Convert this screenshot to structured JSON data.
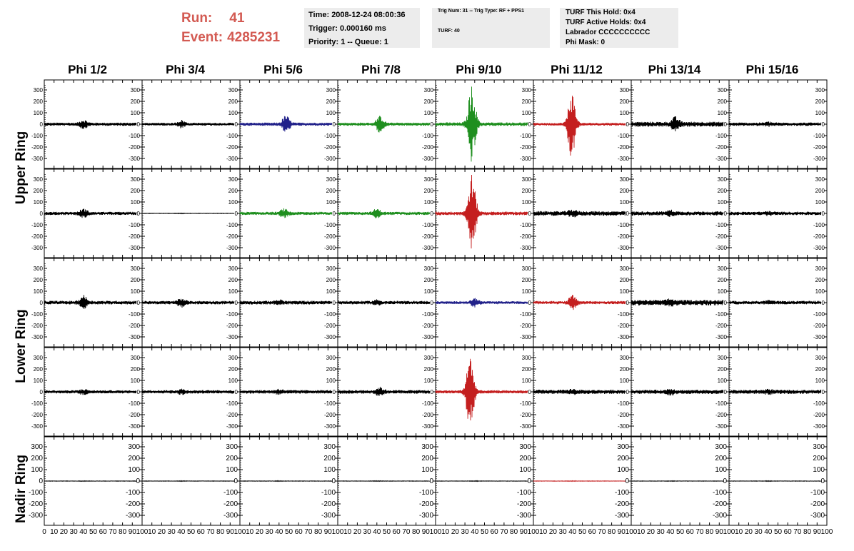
{
  "header": {
    "run_label": "Run:",
    "run_value": "41",
    "event_label": "Event:",
    "event_value": "4285231",
    "time_box": [
      "Time: 2008-12-24 08:00:36",
      "Trigger: 0.000160 ms",
      "Priority: 1 -- Queue: 1"
    ],
    "trig_box": {
      "line1": "Trig Num: 31 -- Trig Type: RF + PPS1",
      "line2": "TURF: 40"
    },
    "turf_box": [
      "TURF This Hold: 0x4",
      "TURF Active Holds: 0x4",
      "Labrador CCCCCCCCCC",
      "Phi Mask: 0"
    ]
  },
  "columns": [
    "Phi 1/2",
    "Phi 3/4",
    "Phi 5/6",
    "Phi 7/8",
    "Phi 9/10",
    "Phi 11/12",
    "Phi 13/14",
    "Phi 15/16"
  ],
  "rings": [
    {
      "label": "Upper Ring",
      "rows": [
        0,
        1
      ]
    },
    {
      "label": "Lower Ring",
      "rows": [
        2,
        3
      ]
    },
    {
      "label": "Nadir Ring",
      "rows": [
        4
      ]
    }
  ],
  "chart_data": {
    "type": "line",
    "xlim": [
      0,
      100
    ],
    "ylim": [
      -350,
      350
    ],
    "y_ticks": [
      -300,
      -200,
      -100,
      0,
      100,
      200,
      300
    ],
    "y_tick_labels": [
      "-300",
      "-200",
      "-100",
      "0",
      "100",
      "200",
      "300"
    ],
    "x_ticks": [
      0,
      10,
      20,
      30,
      40,
      50,
      60,
      70,
      80,
      90,
      100
    ],
    "x_tick_labels": [
      "0",
      "10",
      "20",
      "30",
      "40",
      "50",
      "60",
      "70",
      "80",
      "90",
      "100"
    ],
    "colors": {
      "black": "#000000",
      "blue": "#22228a",
      "green": "#1f8f1f",
      "red": "#c41f1f"
    },
    "panels": [
      [
        {
          "color": "black",
          "noise": 14,
          "peak": 45,
          "peak_x": 40
        },
        {
          "color": "black",
          "noise": 12,
          "peak": 40,
          "peak_x": 40
        },
        {
          "color": "blue",
          "noise": 14,
          "peak": 80,
          "peak_x": 47
        },
        {
          "color": "green",
          "noise": 14,
          "peak": 75,
          "peak_x": 43
        },
        {
          "color": "green",
          "noise": 16,
          "peak": 340,
          "peak_x": 37
        },
        {
          "color": "red",
          "noise": 12,
          "peak": 290,
          "peak_x": 39
        },
        {
          "color": "black",
          "noise": 22,
          "peak": 70,
          "peak_x": 45
        },
        {
          "color": "black",
          "noise": 15,
          "peak": 25,
          "peak_x": 40
        }
      ],
      [
        {
          "color": "black",
          "noise": 14,
          "peak": 45,
          "peak_x": 40
        },
        {
          "color": "black",
          "noise": 2,
          "peak": 3,
          "peak_x": 40
        },
        {
          "color": "green",
          "noise": 14,
          "peak": 45,
          "peak_x": 45
        },
        {
          "color": "green",
          "noise": 14,
          "peak": 45,
          "peak_x": 40
        },
        {
          "color": "red",
          "noise": 16,
          "peak": 350,
          "peak_x": 37
        },
        {
          "color": "black",
          "noise": 20,
          "peak": 40,
          "peak_x": 40
        },
        {
          "color": "black",
          "noise": 18,
          "peak": 35,
          "peak_x": 40
        },
        {
          "color": "black",
          "noise": 15,
          "peak": 25,
          "peak_x": 40
        }
      ],
      [
        {
          "color": "black",
          "noise": 16,
          "peak": 70,
          "peak_x": 40
        },
        {
          "color": "black",
          "noise": 15,
          "peak": 45,
          "peak_x": 40
        },
        {
          "color": "black",
          "noise": 16,
          "peak": 30,
          "peak_x": 40
        },
        {
          "color": "black",
          "noise": 15,
          "peak": 30,
          "peak_x": 40
        },
        {
          "color": "blue",
          "noise": 12,
          "peak": 45,
          "peak_x": 40
        },
        {
          "color": "red",
          "noise": 14,
          "peak": 70,
          "peak_x": 40
        },
        {
          "color": "black",
          "noise": 24,
          "peak": 40,
          "peak_x": 40
        },
        {
          "color": "black",
          "noise": 15,
          "peak": 25,
          "peak_x": 40
        }
      ],
      [
        {
          "color": "black",
          "noise": 14,
          "peak": 30,
          "peak_x": 40
        },
        {
          "color": "black",
          "noise": 15,
          "peak": 30,
          "peak_x": 40
        },
        {
          "color": "black",
          "noise": 16,
          "peak": 30,
          "peak_x": 40
        },
        {
          "color": "black",
          "noise": 16,
          "peak": 45,
          "peak_x": 43
        },
        {
          "color": "red",
          "noise": 14,
          "peak": 330,
          "peak_x": 35
        },
        {
          "color": "black",
          "noise": 18,
          "peak": 30,
          "peak_x": 40
        },
        {
          "color": "black",
          "noise": 18,
          "peak": 35,
          "peak_x": 40
        },
        {
          "color": "black",
          "noise": 18,
          "peak": 30,
          "peak_x": 40
        }
      ],
      [
        {
          "color": "black",
          "noise": 2,
          "peak": 3,
          "peak_x": 40
        },
        {
          "color": "black",
          "noise": 2,
          "peak": 3,
          "peak_x": 40
        },
        {
          "color": "black",
          "noise": 2,
          "peak": 3,
          "peak_x": 40
        },
        {
          "color": "black",
          "noise": 2,
          "peak": 3,
          "peak_x": 40
        },
        {
          "color": "black",
          "noise": 2,
          "peak": 3,
          "peak_x": 40
        },
        {
          "color": "red",
          "noise": 2,
          "peak": 3,
          "peak_x": 40
        },
        {
          "color": "black",
          "noise": 2,
          "peak": 3,
          "peak_x": 40
        },
        {
          "color": "black",
          "noise": 2,
          "peak": 3,
          "peak_x": 40
        }
      ]
    ]
  }
}
